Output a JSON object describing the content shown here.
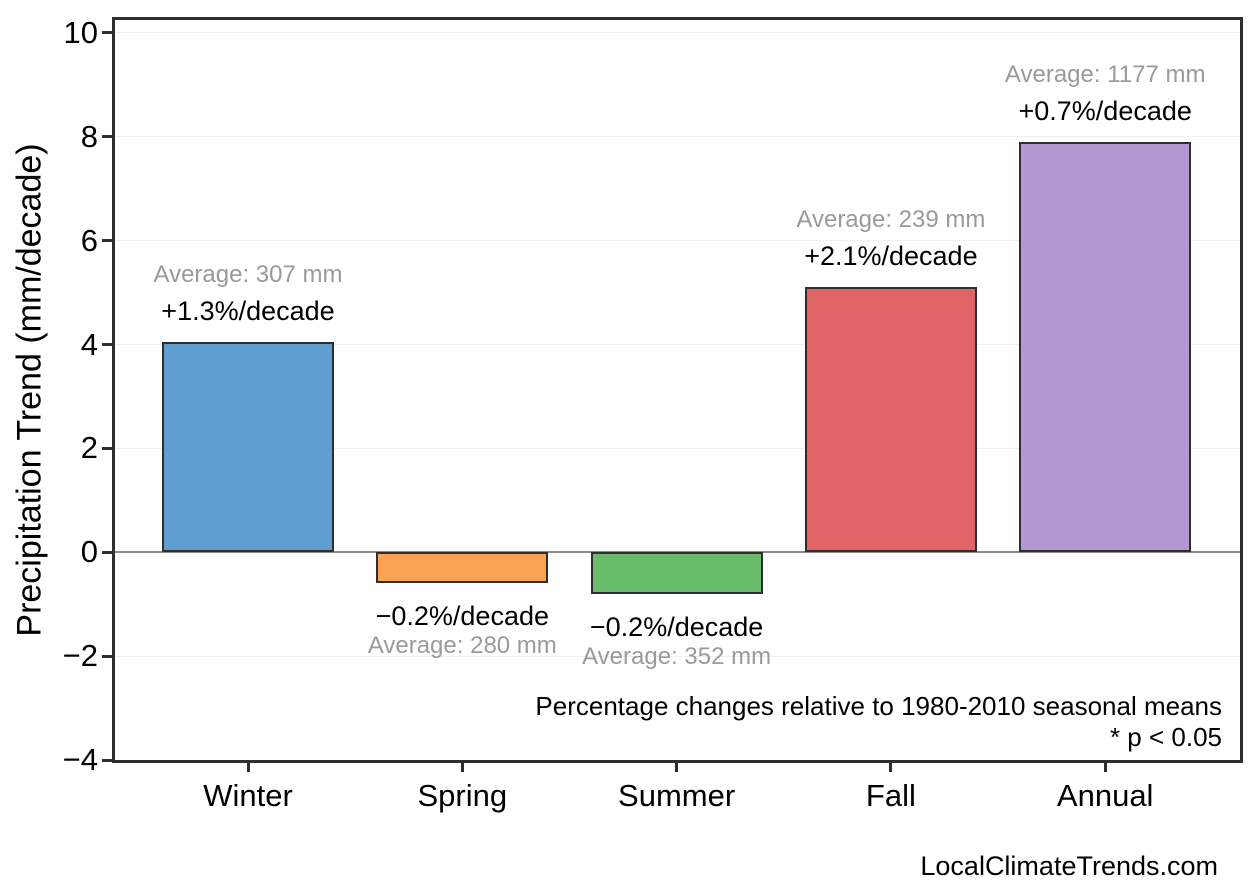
{
  "chart_data": {
    "type": "bar",
    "title": "",
    "xlabel": "",
    "ylabel": "Precipitation Trend (mm/decade)",
    "categories": [
      "Winter",
      "Spring",
      "Summer",
      "Fall",
      "Annual"
    ],
    "values": [
      4.05,
      -0.6,
      -0.8,
      5.1,
      7.9
    ],
    "bar_colors": [
      "#609ECF",
      "#FBA355",
      "#68BC6C",
      "#E06567",
      "#B398D3"
    ],
    "bar_edge_color": "#2e2e2e",
    "bar_labels_avg": [
      "Average: 307 mm",
      "Average: 280 mm",
      "Average: 352 mm",
      "Average: 239 mm",
      "Average: 1177 mm"
    ],
    "bar_labels_pct": [
      "+1.3%/decade",
      "−0.2%/decade",
      "−0.2%/decade",
      "+2.1%/decade",
      "+0.7%/decade"
    ],
    "averages_mm": [
      307,
      280,
      352,
      239,
      1177
    ],
    "pct_per_decade": [
      1.3,
      -0.2,
      -0.2,
      2.1,
      0.7
    ],
    "ylim": [
      -4,
      10.25
    ],
    "yticks": [
      -4,
      -2,
      0,
      2,
      4,
      6,
      8,
      10
    ],
    "grid": "horizontal-light",
    "zero_line": true,
    "legend": "none",
    "note_line1": "Percentage changes relative to 1980-2010 seasonal means",
    "note_line2": "* p < 0.05",
    "watermark": "LocalClimateTrends.com",
    "colors": {
      "grid": "#efefef",
      "zero_line": "#8c8c8c",
      "spine": "#2e2e2e",
      "avg_label_text": "#9a9a9a",
      "pct_label_text": "#000000"
    }
  }
}
